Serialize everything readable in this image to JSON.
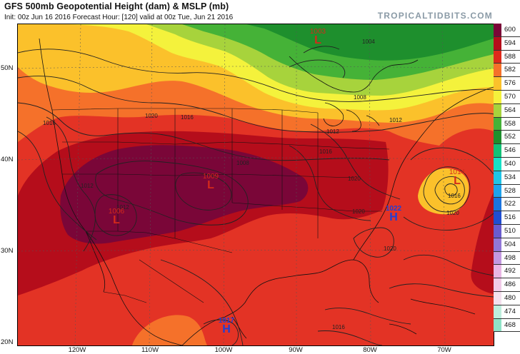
{
  "header": {
    "title": "GFS 500mb Geopotential Height (dam) & MSLP (mb)",
    "subtitle": "Init: 00z Jun 16 2016   Forecast Hour: [120]   valid at 00z Tue, Jun 21 2016",
    "brand": "TROPICALTIDBITS.COM"
  },
  "axes": {
    "lat_labels": [
      "50N",
      "40N",
      "30N",
      "20N"
    ],
    "lon_labels": [
      "120W",
      "110W",
      "100W",
      "90W",
      "80W",
      "70W"
    ]
  },
  "colorbar": {
    "levels": [
      {
        "label": "600",
        "color": "#7a0638"
      },
      {
        "label": "594",
        "color": "#b50d1b"
      },
      {
        "label": "588",
        "color": "#de2a1b"
      },
      {
        "label": "582",
        "color": "#f5712a"
      },
      {
        "label": "576",
        "color": "#fbc12b"
      },
      {
        "label": "570",
        "color": "#f4f23c"
      },
      {
        "label": "564",
        "color": "#a7d33c"
      },
      {
        "label": "558",
        "color": "#45b237"
      },
      {
        "label": "552",
        "color": "#1e8f2d"
      },
      {
        "label": "546",
        "color": "#12c277"
      },
      {
        "label": "540",
        "color": "#17e0c6"
      },
      {
        "label": "534",
        "color": "#20c4e6"
      },
      {
        "label": "528",
        "color": "#1ea3ec"
      },
      {
        "label": "522",
        "color": "#1b74e0"
      },
      {
        "label": "516",
        "color": "#1f4ed1"
      },
      {
        "label": "510",
        "color": "#6a5ccf"
      },
      {
        "label": "504",
        "color": "#9277d8"
      },
      {
        "label": "498",
        "color": "#c398e1"
      },
      {
        "label": "492",
        "color": "#e9b6e4"
      },
      {
        "label": "486",
        "color": "#f1cbe8"
      },
      {
        "label": "480",
        "color": "#f4e0ee"
      },
      {
        "label": "474",
        "color": "#bdeedd"
      },
      {
        "label": "468",
        "color": "#8fe3c7"
      }
    ]
  },
  "pressure_centers": [
    {
      "kind": "L",
      "value": "1003",
      "color": "#d42a1b"
    },
    {
      "kind": "L",
      "value": "1009",
      "color": "#d42a1b"
    },
    {
      "kind": "L",
      "value": "1006",
      "color": "#d42a1b"
    },
    {
      "kind": "L",
      "value": "1014",
      "color": "#d42a1b"
    },
    {
      "kind": "H",
      "value": "1022",
      "color": "#1f3fd6"
    },
    {
      "kind": "H",
      "value": "1017",
      "color": "#1f3fd6"
    }
  ],
  "isobar_labels": [
    "1020",
    "1016",
    "1012",
    "1008",
    "1004",
    "1016",
    "1012",
    "1020",
    "1016",
    "1020",
    "1020",
    "1012",
    "1016",
    "1012",
    "1008",
    "1020",
    "1016"
  ]
}
